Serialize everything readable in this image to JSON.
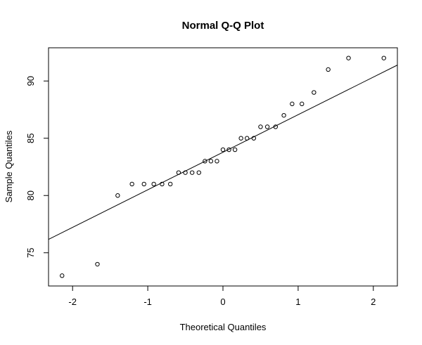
{
  "chart_data": {
    "type": "scatter",
    "title": "Normal Q-Q Plot",
    "xlabel": "Theoretical Quantiles",
    "ylabel": "Sample Quantiles",
    "xlim": [
      -2.32,
      2.32
    ],
    "ylim": [
      72.1,
      92.9
    ],
    "x_ticks": [
      -2,
      -1,
      0,
      1,
      2
    ],
    "x_tick_labels": [
      "-2",
      "-1",
      "0",
      "1",
      "2"
    ],
    "y_ticks": [
      75,
      80,
      85,
      90
    ],
    "y_tick_labels": [
      "75",
      "80",
      "85",
      "90"
    ],
    "grid": false,
    "legend": "none",
    "points": {
      "x": [
        -2.14,
        -1.67,
        -1.4,
        -1.21,
        -1.05,
        -0.92,
        -0.81,
        -0.7,
        -0.59,
        -0.5,
        -0.41,
        -0.32,
        -0.24,
        -0.16,
        -0.08,
        0.0,
        0.08,
        0.16,
        0.24,
        0.32,
        0.41,
        0.5,
        0.59,
        0.7,
        0.81,
        0.92,
        1.05,
        1.21,
        1.4,
        1.67,
        2.14
      ],
      "y": [
        73,
        74,
        80,
        81,
        81,
        81,
        81,
        81,
        82,
        82,
        82,
        82,
        83,
        83,
        83,
        84,
        84,
        84,
        85,
        85,
        85,
        86,
        86,
        86,
        87,
        88,
        88,
        89,
        91,
        92,
        92
      ]
    },
    "reference_line": {
      "slope": 3.28,
      "intercept": 83.78
    },
    "colors": {
      "points": "#000000",
      "line": "#000000",
      "box": "#000000"
    }
  }
}
